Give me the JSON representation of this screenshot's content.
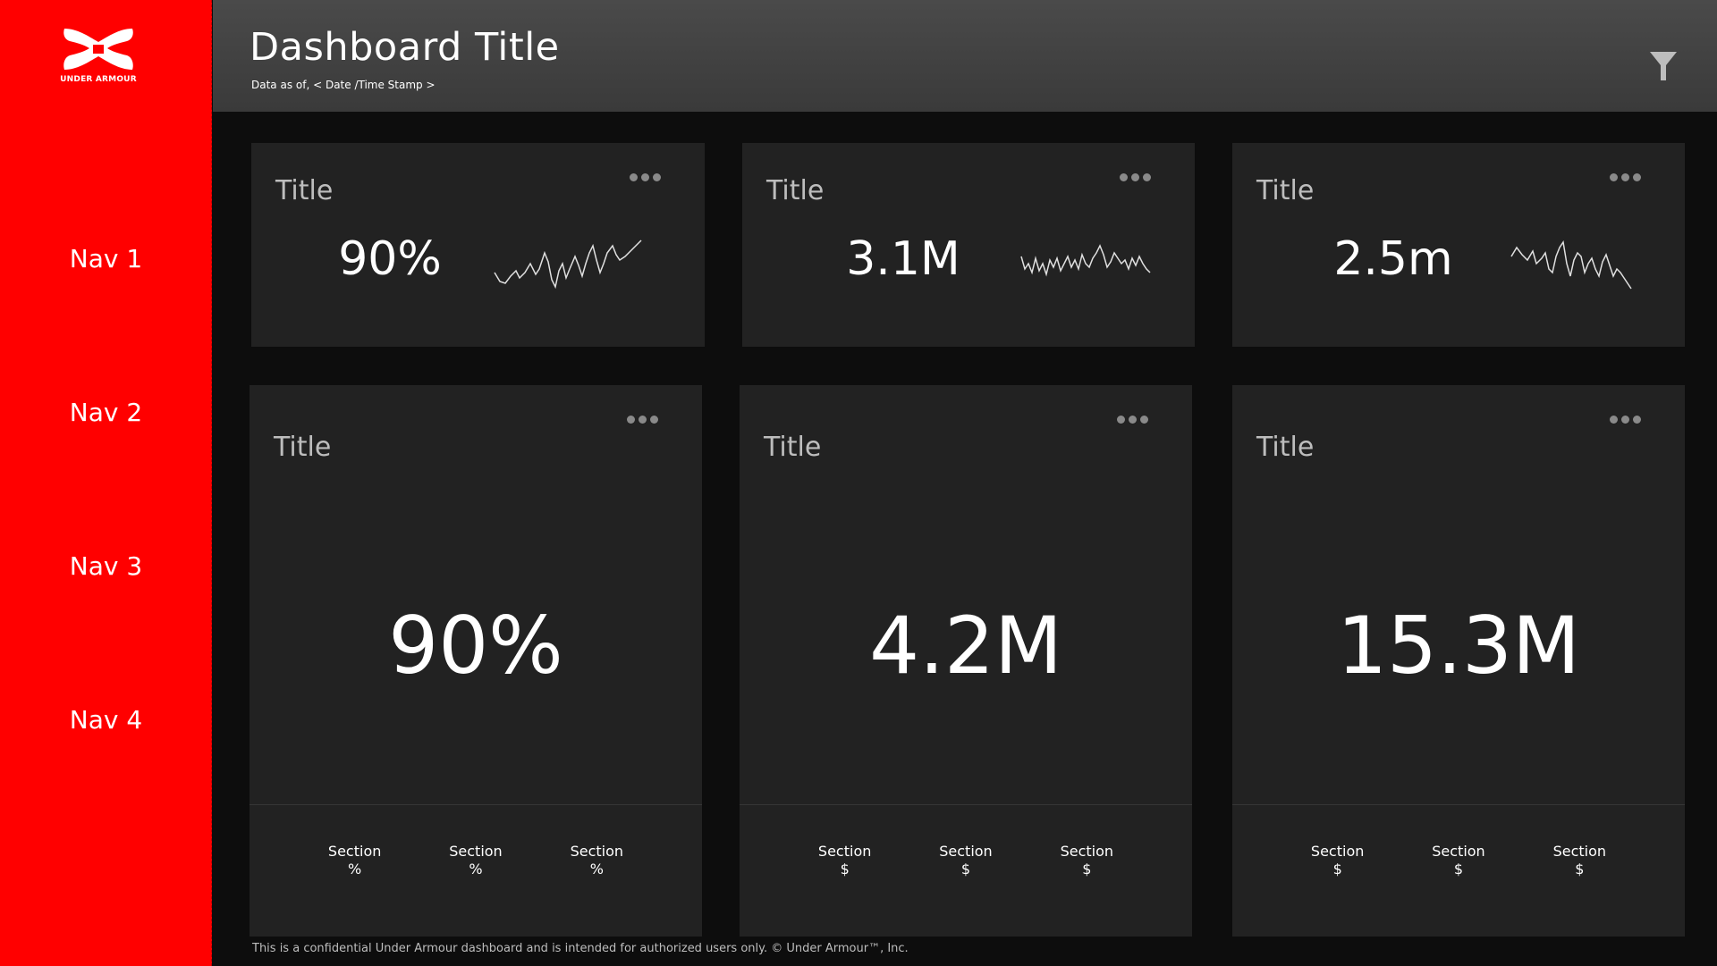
{
  "brand": {
    "name": "UNDER ARMOUR",
    "color": "#ff0000"
  },
  "sidebar": {
    "items": [
      {
        "label": "Nav 1"
      },
      {
        "label": "Nav 2"
      },
      {
        "label": "Nav 3"
      },
      {
        "label": "Nav 4"
      }
    ]
  },
  "header": {
    "title": "Dashboard Title",
    "subtitle": "Data as of, < Date /Time Stamp >",
    "filter_icon": "filter-icon"
  },
  "kpi_cards": [
    {
      "title": "Title",
      "value": "90%",
      "menu_icon": "more-icon"
    },
    {
      "title": "Title",
      "value": "3.1M",
      "menu_icon": "more-icon"
    },
    {
      "title": "Title",
      "value": "2.5m",
      "menu_icon": "more-icon"
    }
  ],
  "detail_cards": [
    {
      "title": "Title",
      "value": "90%",
      "sections": [
        {
          "label": "Section",
          "unit": "%"
        },
        {
          "label": "Section",
          "unit": "%"
        },
        {
          "label": "Section",
          "unit": "%"
        }
      ]
    },
    {
      "title": "Title",
      "value": "4.2M",
      "sections": [
        {
          "label": "Section",
          "unit": "$"
        },
        {
          "label": "Section",
          "unit": "$"
        },
        {
          "label": "Section",
          "unit": "$"
        }
      ]
    },
    {
      "title": "Title",
      "value": "15.3M",
      "sections": [
        {
          "label": "Section",
          "unit": "$"
        },
        {
          "label": "Section",
          "unit": "$"
        },
        {
          "label": "Section",
          "unit": "$"
        }
      ]
    }
  ],
  "footer": {
    "text": "This is a confidential Under Armour dashboard and is intended for authorized users only.  © Under Armour™, Inc."
  }
}
